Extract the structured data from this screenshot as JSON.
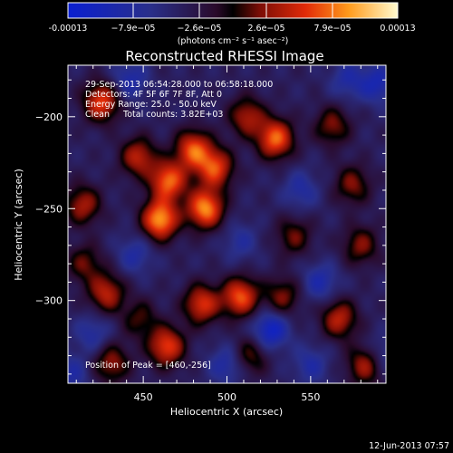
{
  "chart_data": {
    "type": "heatmap",
    "title": "Reconstructed RHESSI Image",
    "xlabel": "Heliocentric X (arcsec)",
    "ylabel": "Heliocentric Y (arcsec)",
    "xlim": [
      405,
      595
    ],
    "ylim": [
      -345,
      -172
    ],
    "x_ticks": [
      450,
      500,
      550
    ],
    "y_ticks": [
      -200,
      -250,
      -300
    ],
    "colorbar": {
      "range": [
        -0.00013,
        0.00013
      ],
      "tick_labels": [
        "-0.00013",
        "−7.9e−05",
        "−2.6e−05",
        "2.6e−05",
        "7.9e−05",
        "0.00013"
      ],
      "unit_label": "(photons cm⁻² s⁻¹ asec⁻²)"
    },
    "info_lines": [
      "29-Sep-2013 06:54:28.000 to 06:58:18.000",
      "Detectors: 4F 5F 6F 7F 8F, Att 0",
      "Energy Range: 25.0 - 50.0 keV",
      "Clean     Total counts: 3.82E+03"
    ],
    "peak_label": "Position of Peak = [460,-256]",
    "peak": [
      460,
      -256
    ],
    "sources": [
      {
        "x": 460,
        "y": -256,
        "amp": 1.0
      },
      {
        "x": 465,
        "y": -235,
        "amp": 0.85
      },
      {
        "x": 480,
        "y": -218,
        "amp": 0.8
      },
      {
        "x": 487,
        "y": -250,
        "amp": 0.95
      },
      {
        "x": 493,
        "y": -228,
        "amp": 0.75
      },
      {
        "x": 447,
        "y": -222,
        "amp": 0.6
      },
      {
        "x": 425,
        "y": -192,
        "amp": 0.75
      },
      {
        "x": 414,
        "y": -248,
        "amp": 0.55
      },
      {
        "x": 415,
        "y": -280,
        "amp": 0.4
      },
      {
        "x": 428,
        "y": -296,
        "amp": 0.6
      },
      {
        "x": 431,
        "y": -334,
        "amp": 0.5
      },
      {
        "x": 448,
        "y": -310,
        "amp": 0.35
      },
      {
        "x": 464,
        "y": -325,
        "amp": 0.75
      },
      {
        "x": 485,
        "y": -302,
        "amp": 0.7
      },
      {
        "x": 508,
        "y": -298,
        "amp": 0.8
      },
      {
        "x": 529,
        "y": -212,
        "amp": 0.85
      },
      {
        "x": 512,
        "y": -200,
        "amp": 0.55
      },
      {
        "x": 533,
        "y": -298,
        "amp": 0.45
      },
      {
        "x": 540,
        "y": -265,
        "amp": 0.4
      },
      {
        "x": 563,
        "y": -205,
        "amp": 0.45
      },
      {
        "x": 575,
        "y": -237,
        "amp": 0.45
      },
      {
        "x": 580,
        "y": -270,
        "amp": 0.45
      },
      {
        "x": 567,
        "y": -310,
        "amp": 0.6
      },
      {
        "x": 583,
        "y": -335,
        "amp": 0.6
      },
      {
        "x": 514,
        "y": -330,
        "amp": 0.4
      },
      {
        "x": 442,
        "y": -180,
        "amp": -0.35
      },
      {
        "x": 445,
        "y": -275,
        "amp": -0.3
      },
      {
        "x": 508,
        "y": -268,
        "amp": -0.25
      },
      {
        "x": 544,
        "y": -240,
        "amp": -0.3
      },
      {
        "x": 556,
        "y": -290,
        "amp": -0.35
      },
      {
        "x": 420,
        "y": -318,
        "amp": -0.3
      },
      {
        "x": 526,
        "y": -316,
        "amp": -0.55
      },
      {
        "x": 500,
        "y": -335,
        "amp": -0.35
      },
      {
        "x": 590,
        "y": -182,
        "amp": -0.4
      },
      {
        "x": 572,
        "y": -180,
        "amp": -0.3
      },
      {
        "x": 592,
        "y": -330,
        "amp": -0.3
      },
      {
        "x": 550,
        "y": -335,
        "amp": -0.3
      },
      {
        "x": 407,
        "y": -340,
        "amp": -0.3
      }
    ]
  },
  "footer_timestamp": "12-Jun-2013 07:57"
}
